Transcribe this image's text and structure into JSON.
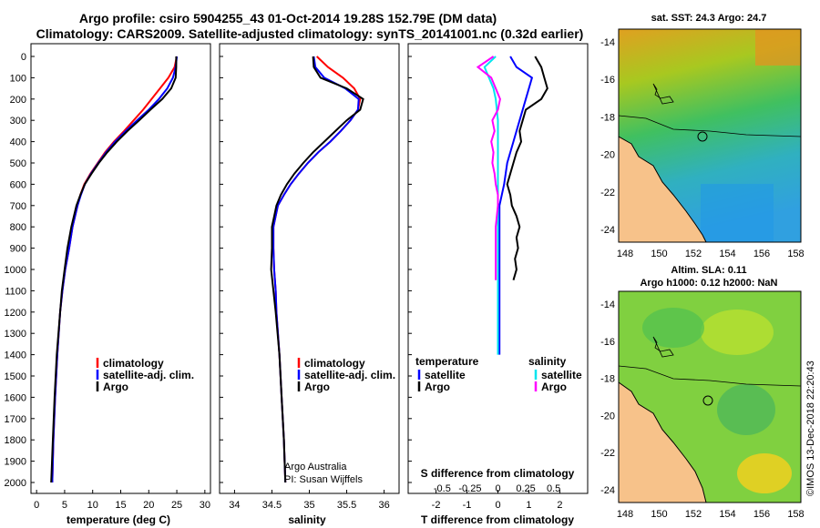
{
  "title_line1": "Argo profile: csiro 5904255_43 01-Oct-2014 19.28S 152.79E (DM data)",
  "title_line2": "Climatology: CARS2009. Satellite-adjusted climatology: synTS_20141001.nc (0.32d earlier)",
  "depth_ticks": [
    "0",
    "100",
    "200",
    "300",
    "400",
    "500",
    "600",
    "700",
    "800",
    "900",
    "1000",
    "1100",
    "1200",
    "1300",
    "1400",
    "1500",
    "1600",
    "1700",
    "1800",
    "1900",
    "2000"
  ],
  "colors": {
    "climatology": "#ff0000",
    "satellite": "#0000ff",
    "argo": "#000000",
    "sat_salinity": "#00e5ee",
    "argo_salinity": "#ff00ff"
  },
  "chart_data": [
    {
      "type": "line",
      "name": "temperature-panel",
      "xlabel": "temperature (deg C)",
      "ylabel": "depth",
      "xlim": [
        -1,
        31
      ],
      "ylim": [
        2000,
        0
      ],
      "x_ticks": [
        "0",
        "5",
        "10",
        "15",
        "20",
        "25",
        "30"
      ],
      "legend": [
        "climatology",
        "satellite-adj. clim.",
        "Argo"
      ],
      "depth": [
        0,
        50,
        100,
        150,
        200,
        250,
        300,
        350,
        400,
        450,
        500,
        550,
        600,
        650,
        700,
        800,
        900,
        1000,
        1100,
        1200,
        1400,
        1600,
        1800,
        2000
      ],
      "series": [
        {
          "name": "climatology",
          "values": [
            25.0,
            24.6,
            23.5,
            22.0,
            20.5,
            19.0,
            17.3,
            15.6,
            13.8,
            12.2,
            10.9,
            9.6,
            8.5,
            7.8,
            7.3,
            6.4,
            5.8,
            5.1,
            4.6,
            4.2,
            3.7,
            3.3,
            3.0,
            2.8
          ]
        },
        {
          "name": "satellite-adj. clim.",
          "values": [
            25.0,
            24.8,
            24.3,
            23.3,
            21.8,
            20.0,
            17.9,
            15.9,
            14.0,
            12.4,
            11.0,
            9.7,
            8.6,
            7.9,
            7.3,
            6.4,
            5.8,
            5.1,
            4.6,
            4.2,
            3.7,
            3.3,
            3.0,
            2.8
          ]
        },
        {
          "name": "Argo",
          "values": [
            24.9,
            24.9,
            24.8,
            24.0,
            22.4,
            20.3,
            18.3,
            16.2,
            14.3,
            12.6,
            11.1,
            9.8,
            8.6,
            7.8,
            7.1,
            6.2,
            5.5,
            5.0,
            4.5,
            4.2,
            3.6,
            3.2,
            2.9,
            2.6
          ]
        }
      ]
    },
    {
      "type": "line",
      "name": "salinity-panel",
      "xlabel": "salinity",
      "xlim": [
        33.8,
        36.2
      ],
      "ylim": [
        2000,
        0
      ],
      "x_ticks": [
        "34",
        "34.5",
        "35",
        "35.5",
        "36"
      ],
      "legend": [
        "climatology",
        "satellite-adj. clim.",
        "Argo"
      ],
      "depth": [
        0,
        50,
        100,
        150,
        200,
        250,
        300,
        350,
        400,
        450,
        500,
        550,
        600,
        650,
        700,
        800,
        900,
        1000,
        1100,
        1200,
        1400,
        1600,
        1800,
        2000
      ],
      "series": [
        {
          "name": "climatology",
          "values": [
            35.1,
            35.25,
            35.45,
            35.6,
            35.68,
            35.65,
            35.55,
            35.42,
            35.28,
            35.12,
            34.98,
            34.86,
            34.75,
            34.66,
            34.58,
            34.52,
            34.52,
            34.53,
            34.55,
            34.56,
            34.6,
            34.63,
            34.66,
            34.68
          ]
        },
        {
          "name": "satellite-adj. clim.",
          "values": [
            35.06,
            35.08,
            35.2,
            35.48,
            35.66,
            35.65,
            35.55,
            35.42,
            35.28,
            35.12,
            34.98,
            34.86,
            34.75,
            34.66,
            34.58,
            34.52,
            34.52,
            34.53,
            34.55,
            34.56,
            34.6,
            34.63,
            34.66,
            34.68
          ]
        },
        {
          "name": "Argo",
          "values": [
            35.05,
            35.06,
            35.15,
            35.5,
            35.72,
            35.68,
            35.5,
            35.35,
            35.2,
            35.05,
            34.92,
            34.8,
            34.7,
            34.62,
            34.56,
            34.5,
            34.5,
            34.49,
            34.52,
            34.55,
            34.6,
            34.63,
            34.66,
            34.68
          ]
        }
      ]
    },
    {
      "type": "line",
      "name": "difference-panel",
      "xlabel": "T difference from climatology",
      "xlabel_top": "S difference from climatology",
      "xlim": [
        -2.9,
        2.9
      ],
      "ylim": [
        2000,
        0
      ],
      "x_ticks": [
        "-2",
        "-1",
        "0",
        "1",
        "2"
      ],
      "s_ticks": [
        "-0.5",
        "-0.25",
        "0",
        "0.25",
        "0.5"
      ],
      "legend_headers": [
        "temperature",
        "salinity"
      ],
      "legend": [
        "satellite",
        "Argo",
        "satellite",
        "Argo"
      ],
      "t_depth": [
        0,
        50,
        100,
        150,
        200,
        250,
        300,
        350,
        400,
        450,
        500,
        550,
        600,
        650,
        700,
        750,
        800,
        850,
        900,
        950,
        1000,
        1050
      ],
      "series": [
        {
          "name": "temperature satellite",
          "depth": [
            0,
            50,
            100,
            150,
            200,
            300,
            400,
            500,
            600,
            700,
            800,
            1000,
            1200,
            1400
          ],
          "values": [
            0.4,
            0.6,
            1.1,
            1.0,
            0.9,
            0.7,
            0.5,
            0.3,
            0.2,
            0.05,
            0.05,
            0.05,
            0.05,
            0.05
          ]
        },
        {
          "name": "temperature Argo",
          "depth": [
            0,
            50,
            100,
            150,
            200,
            250,
            300,
            350,
            400,
            450,
            500,
            550,
            600,
            650,
            700,
            750,
            800,
            850,
            900,
            950,
            1000,
            1050
          ],
          "values": [
            1.2,
            1.4,
            1.5,
            1.6,
            1.4,
            0.9,
            0.8,
            0.7,
            0.75,
            0.6,
            0.5,
            0.4,
            0.3,
            0.4,
            0.45,
            0.6,
            0.7,
            0.6,
            0.65,
            0.55,
            0.6,
            0.5
          ]
        },
        {
          "name": "salinity satellite",
          "depth": [
            0,
            50,
            100,
            150,
            200,
            300,
            400,
            500,
            600,
            700,
            800,
            1000,
            1200,
            1400
          ],
          "values": [
            -0.02,
            -0.12,
            -0.08,
            -0.04,
            -0.02,
            0,
            0,
            0,
            0,
            0,
            0,
            0,
            0,
            0
          ]
        },
        {
          "name": "salinity Argo",
          "depth": [
            0,
            50,
            100,
            150,
            200,
            250,
            300,
            350,
            400,
            450,
            500,
            550,
            600,
            650,
            700,
            800,
            900,
            1000,
            1050
          ],
          "values": [
            -0.04,
            -0.18,
            -0.06,
            -0.02,
            0.02,
            0.0,
            -0.05,
            -0.03,
            -0.06,
            -0.04,
            -0.05,
            -0.03,
            -0.02,
            0,
            0,
            -0.02,
            -0.02,
            -0.02,
            -0.02
          ]
        }
      ]
    }
  ],
  "map1": {
    "title": "sat. SST: 24.3 Argo: 24.7",
    "x_ticks": [
      "148",
      "150",
      "152",
      "154",
      "156",
      "158"
    ],
    "y_ticks": [
      "-14",
      "-16",
      "-18",
      "-20",
      "-22",
      "-24"
    ]
  },
  "map2": {
    "title1": "Altim. SLA: 0.11",
    "title2": "Argo h1000: 0.12 h2000: NaN",
    "x_ticks": [
      "148",
      "150",
      "152",
      "154",
      "156",
      "158"
    ],
    "y_ticks": [
      "-14",
      "-16",
      "-18",
      "-20",
      "-22",
      "-24"
    ]
  },
  "credit1": "Argo Australia",
  "credit2": "PI: Susan Wijffels",
  "stamp": "©IMOS 13-Dec-2018 22:20:43"
}
